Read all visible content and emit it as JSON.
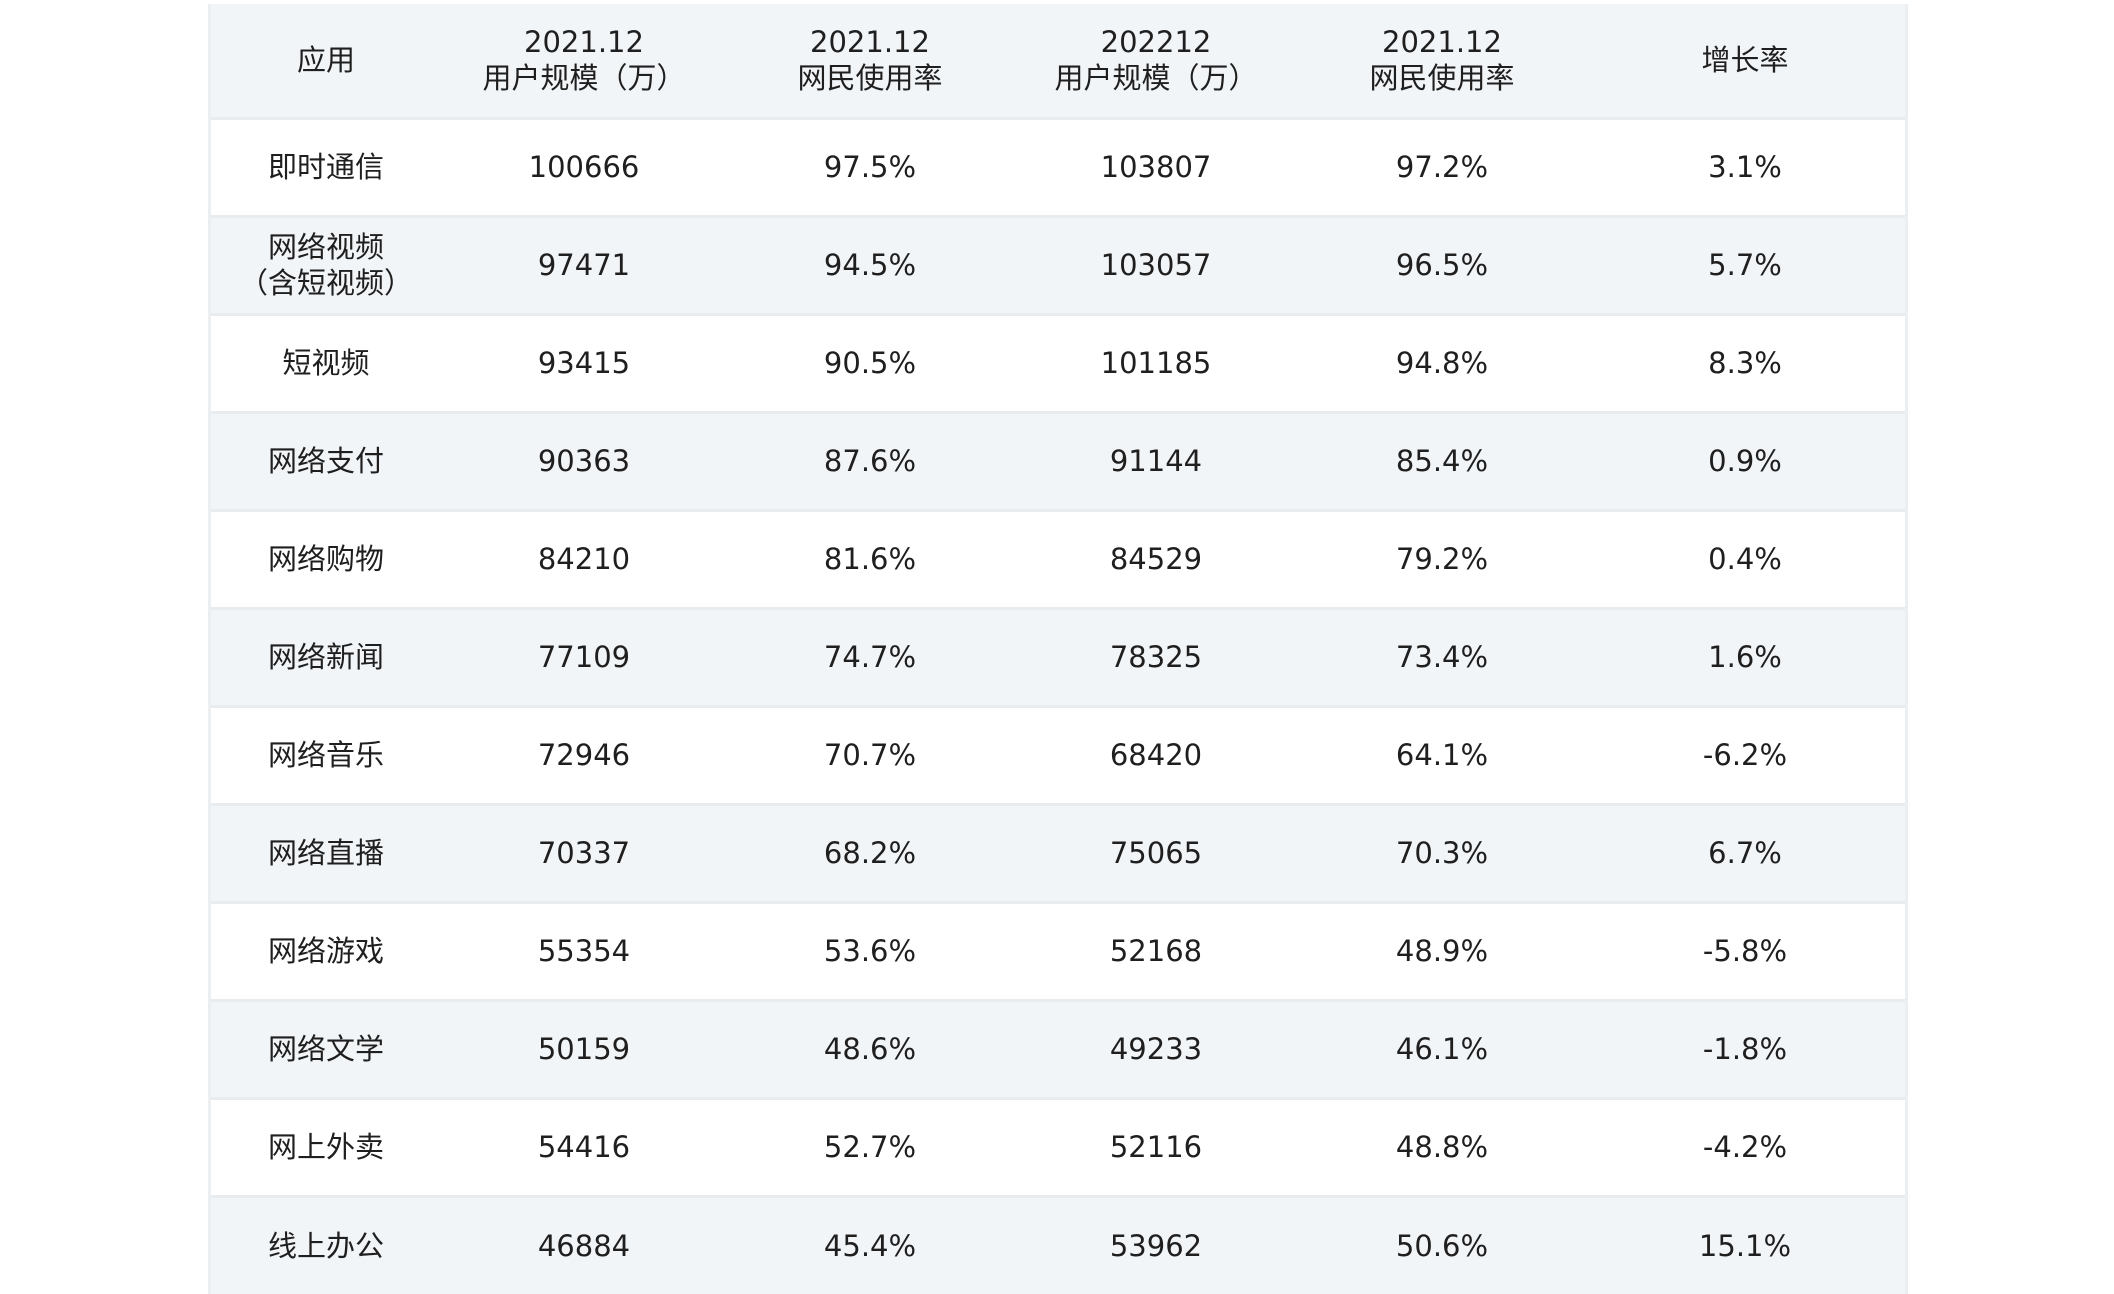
{
  "table": {
    "headers": [
      {
        "line1": "应用",
        "line2": ""
      },
      {
        "line1": "2021.12",
        "line2": "用户规模（万）"
      },
      {
        "line1": "2021.12",
        "line2": "网民使用率"
      },
      {
        "line1": "202212",
        "line2": "用户规模（万）"
      },
      {
        "line1": "2021.12",
        "line2": "网民使用率"
      },
      {
        "line1": "增长率",
        "line2": ""
      }
    ],
    "rows": [
      {
        "app": "即时通信",
        "app2": "",
        "users2021": "100666",
        "rate2021": "97.5%",
        "users2022": "103807",
        "rate2022": "97.2%",
        "growth": "3.1%"
      },
      {
        "app": "网络视频",
        "app2": "（含短视频）",
        "users2021": "97471",
        "rate2021": "94.5%",
        "users2022": "103057",
        "rate2022": "96.5%",
        "growth": "5.7%"
      },
      {
        "app": "短视频",
        "app2": "",
        "users2021": "93415",
        "rate2021": "90.5%",
        "users2022": "101185",
        "rate2022": "94.8%",
        "growth": "8.3%"
      },
      {
        "app": "网络支付",
        "app2": "",
        "users2021": "90363",
        "rate2021": "87.6%",
        "users2022": "91144",
        "rate2022": "85.4%",
        "growth": "0.9%"
      },
      {
        "app": "网络购物",
        "app2": "",
        "users2021": "84210",
        "rate2021": "81.6%",
        "users2022": "84529",
        "rate2022": "79.2%",
        "growth": "0.4%"
      },
      {
        "app": "网络新闻",
        "app2": "",
        "users2021": "77109",
        "rate2021": "74.7%",
        "users2022": "78325",
        "rate2022": "73.4%",
        "growth": "1.6%"
      },
      {
        "app": "网络音乐",
        "app2": "",
        "users2021": "72946",
        "rate2021": "70.7%",
        "users2022": "68420",
        "rate2022": "64.1%",
        "growth": "-6.2%"
      },
      {
        "app": "网络直播",
        "app2": "",
        "users2021": "70337",
        "rate2021": "68.2%",
        "users2022": "75065",
        "rate2022": "70.3%",
        "growth": "6.7%"
      },
      {
        "app": "网络游戏",
        "app2": "",
        "users2021": "55354",
        "rate2021": "53.6%",
        "users2022": "52168",
        "rate2022": "48.9%",
        "growth": "-5.8%"
      },
      {
        "app": "网络文学",
        "app2": "",
        "users2021": "50159",
        "rate2021": "48.6%",
        "users2022": "49233",
        "rate2022": "46.1%",
        "growth": "-1.8%"
      },
      {
        "app": "网上外卖",
        "app2": "",
        "users2021": "54416",
        "rate2021": "52.7%",
        "users2022": "52116",
        "rate2022": "48.8%",
        "growth": "-4.2%"
      },
      {
        "app": "线上办公",
        "app2": "",
        "users2021": "46884",
        "rate2021": "45.4%",
        "users2022": "53962",
        "rate2022": "50.6%",
        "growth": "15.1%"
      }
    ]
  }
}
